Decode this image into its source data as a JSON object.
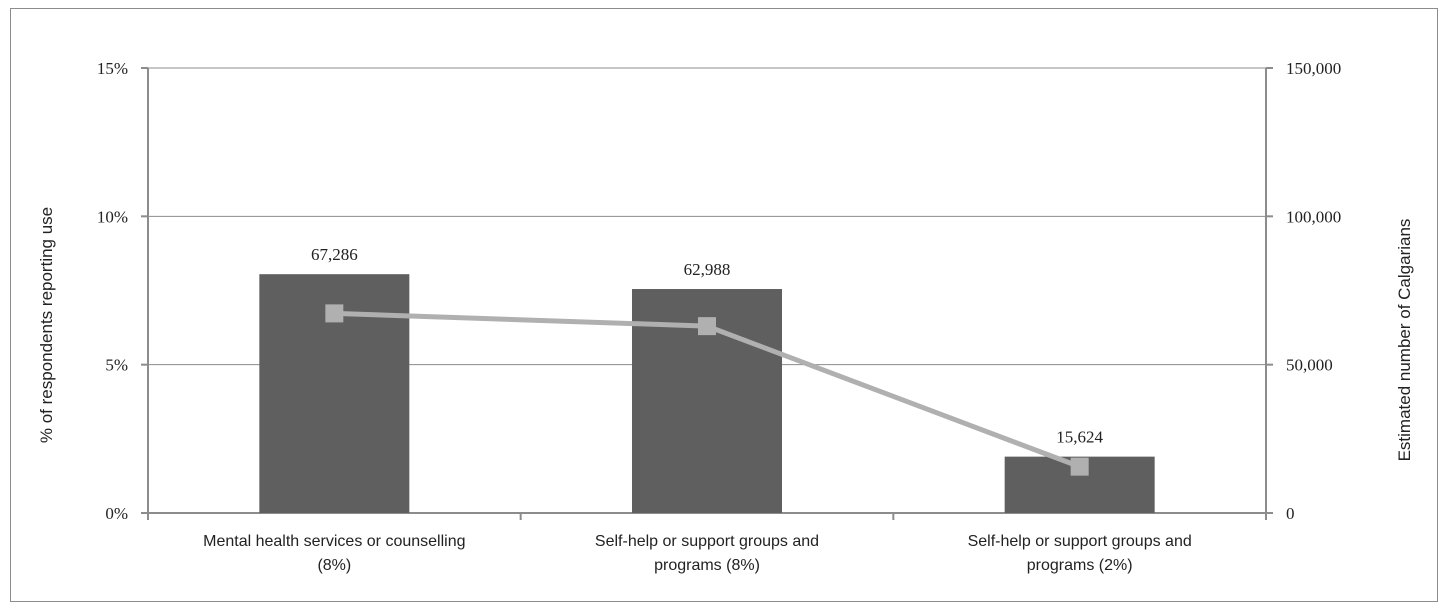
{
  "chart_data": {
    "type": "bar",
    "categories": [
      [
        "Mental health services or counselling",
        "(8%)"
      ],
      [
        "Self-help or support groups and",
        "programs (8%)"
      ],
      [
        "Self-help or support groups and",
        "programs (2%)"
      ]
    ],
    "bar_values": [
      8.05,
      7.55,
      1.9
    ],
    "line_values": [
      67286,
      62988,
      15624
    ],
    "line_labels": [
      "67,286",
      "62,988",
      "15,624"
    ],
    "ylabel_left": "% of respondents reporting use",
    "ylabel_right": "Estimated number of Calgarians",
    "y_left": {
      "lim": [
        0,
        15
      ],
      "ticks": [
        0,
        5,
        10,
        15
      ],
      "tick_labels": [
        "0%",
        "5%",
        "10%",
        "15%"
      ]
    },
    "y_right": {
      "lim": [
        0,
        150000
      ],
      "ticks": [
        0,
        50000,
        100000,
        150000
      ],
      "tick_labels": [
        "0",
        "50,000",
        "100,000",
        "150,000"
      ]
    },
    "grid": true,
    "legend": "none",
    "colors": {
      "bar": "#5f5f5f",
      "line": "#b0b0b0",
      "marker": "#b0b0b0",
      "grid": "#8c8c8c",
      "axis": "#8c8c8c"
    }
  }
}
